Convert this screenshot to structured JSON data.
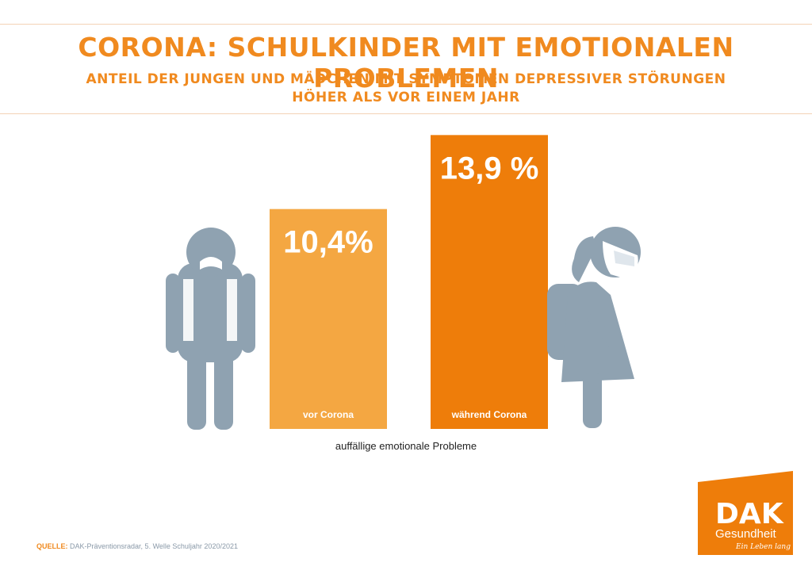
{
  "header": {
    "title": "CORONA: SCHULKINDER MIT EMOTIONALEN PROBLEMEN",
    "subtitle_line1": "ANTEIL DER JUNGEN UND MÄDCHEN MIT SYMPTOMEN DEPRESSIVER STÖRUNGEN",
    "subtitle_line2": "HÖHER ALS VOR EINEM JAHR"
  },
  "chart_data": {
    "type": "bar",
    "categories": [
      "vor Corona",
      "während Corona"
    ],
    "values": [
      10.4,
      13.9
    ],
    "value_labels": [
      "10,4%",
      "13,9 %"
    ],
    "xlabel": "auffällige emotionale Probleme",
    "ylim": [
      0,
      15
    ],
    "colors": [
      "#f4a742",
      "#ee7d0a"
    ]
  },
  "source": {
    "label": "QUELLE:",
    "text": "DAK-Präventionsradar, 5. Welle Schuljahr 2020/2021"
  },
  "logo": {
    "brand": "DAK",
    "name": "Gesundheit",
    "slogan": "Ein Leben lang",
    "color": "#ee7d0a"
  },
  "icons": [
    "boy-student-icon",
    "girl-student-icon"
  ],
  "colors": {
    "accent": "#f08a1f",
    "figure": "#8fa2b1"
  }
}
